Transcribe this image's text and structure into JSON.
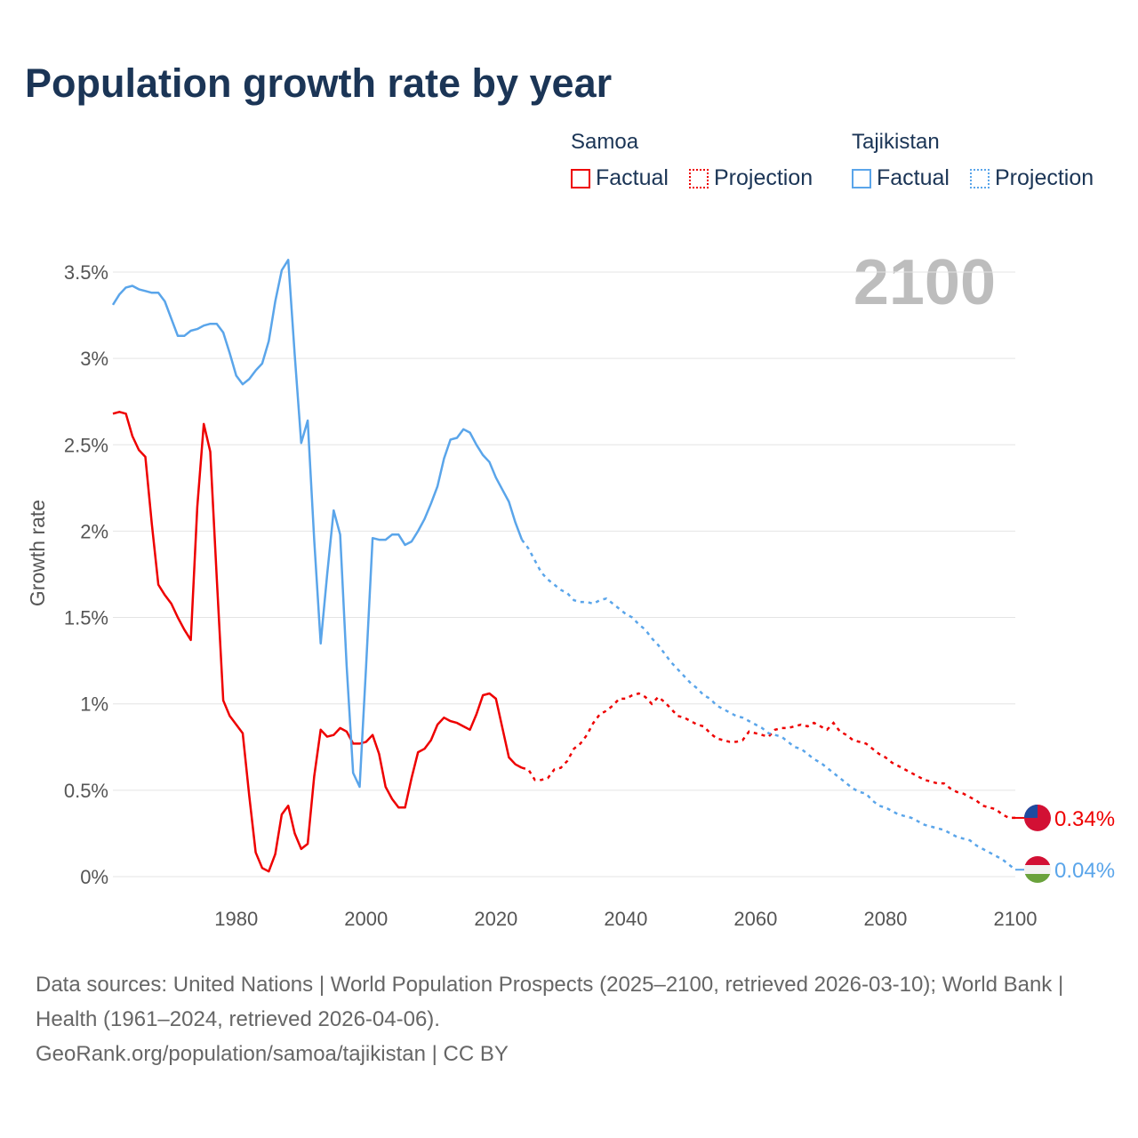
{
  "title": "Population growth rate by year",
  "legend": {
    "groups": [
      {
        "name": "Samoa",
        "factual": "Factual",
        "projection": "Projection",
        "color": "#ee0000"
      },
      {
        "name": "Tajikistan",
        "factual": "Factual",
        "projection": "Projection",
        "color": "#5aa5ea"
      }
    ]
  },
  "year_label": "2100",
  "footer": {
    "sources": "Data sources: United Nations | World Population Prospects (2025–2100, retrieved 2026-03-10); World Bank | Health (1961–2024, retrieved 2026-04-06).",
    "credit": "GeoRank.org/population/samoa/tajikistan | CC BY"
  },
  "chart_data": {
    "type": "line",
    "title": "Population growth rate by year",
    "xlabel": "",
    "ylabel": "Growth rate",
    "xlim": [
      1961,
      2100
    ],
    "ylim": [
      0,
      3.6
    ],
    "x_ticks": [
      "1980",
      "2000",
      "2020",
      "2040",
      "2060",
      "2080",
      "2100"
    ],
    "y_ticks": [
      "0%",
      "0.5%",
      "1%",
      "1.5%",
      "2%",
      "2.5%",
      "3%",
      "3.5%"
    ],
    "y_tick_values": [
      0,
      0.5,
      1,
      1.5,
      2,
      2.5,
      3,
      3.5
    ],
    "x_tick_values": [
      1980,
      2000,
      2020,
      2040,
      2060,
      2080,
      2100
    ],
    "grid": true,
    "series": [
      {
        "name": "Samoa",
        "color": "#ee0000",
        "end_label": "0.34%",
        "factual_start": 1961,
        "factual": [
          2.68,
          2.69,
          2.68,
          2.55,
          2.47,
          2.43,
          2.04,
          1.69,
          1.63,
          1.58,
          1.5,
          1.43,
          1.37,
          2.14,
          2.62,
          2.46,
          1.73,
          1.02,
          0.93,
          0.88,
          0.83,
          0.47,
          0.14,
          0.05,
          0.03,
          0.13,
          0.36,
          0.41,
          0.25,
          0.16,
          0.19,
          0.58,
          0.85,
          0.81,
          0.82,
          0.86,
          0.84,
          0.77,
          0.77,
          0.78,
          0.82,
          0.71,
          0.52,
          0.45,
          0.4,
          0.4,
          0.57,
          0.72,
          0.74,
          0.79,
          0.88,
          0.92,
          0.9,
          0.89,
          0.87,
          0.85,
          0.94,
          1.05,
          1.06,
          1.03,
          0.86,
          0.69,
          0.65,
          0.63
        ],
        "projection_start": 2024,
        "projection": [
          0.63,
          0.62,
          0.56,
          0.56,
          0.57,
          0.62,
          0.63,
          0.67,
          0.74,
          0.77,
          0.82,
          0.89,
          0.94,
          0.96,
          0.99,
          1.03,
          1.03,
          1.05,
          1.06,
          1.04,
          1.0,
          1.04,
          1.01,
          0.97,
          0.93,
          0.92,
          0.9,
          0.88,
          0.87,
          0.83,
          0.8,
          0.79,
          0.78,
          0.78,
          0.79,
          0.84,
          0.83,
          0.82,
          0.81,
          0.85,
          0.86,
          0.86,
          0.87,
          0.88,
          0.87,
          0.89,
          0.87,
          0.85,
          0.89,
          0.84,
          0.82,
          0.79,
          0.78,
          0.77,
          0.74,
          0.71,
          0.69,
          0.66,
          0.64,
          0.62,
          0.6,
          0.58,
          0.56,
          0.55,
          0.54,
          0.54,
          0.51,
          0.49,
          0.48,
          0.46,
          0.44,
          0.41,
          0.4,
          0.39,
          0.36,
          0.34,
          0.34
        ]
      },
      {
        "name": "Tajikistan",
        "color": "#5aa5ea",
        "end_label": "0.04%",
        "factual_start": 1961,
        "factual": [
          3.31,
          3.37,
          3.41,
          3.42,
          3.4,
          3.39,
          3.38,
          3.38,
          3.33,
          3.23,
          3.13,
          3.13,
          3.16,
          3.17,
          3.19,
          3.2,
          3.2,
          3.15,
          3.03,
          2.9,
          2.85,
          2.88,
          2.93,
          2.97,
          3.1,
          3.33,
          3.51,
          3.57,
          3.02,
          2.51,
          2.64,
          1.95,
          1.35,
          1.75,
          2.12,
          1.98,
          1.22,
          0.6,
          0.52,
          1.22,
          1.96,
          1.95,
          1.95,
          1.98,
          1.98,
          1.92,
          1.94,
          2.0,
          2.07,
          2.16,
          2.26,
          2.42,
          2.53,
          2.54,
          2.59,
          2.57,
          2.5,
          2.44,
          2.4,
          2.31,
          2.24,
          2.17,
          2.05,
          1.95
        ],
        "projection_start": 2024,
        "projection": [
          1.95,
          1.9,
          1.83,
          1.76,
          1.72,
          1.69,
          1.66,
          1.64,
          1.6,
          1.59,
          1.59,
          1.58,
          1.6,
          1.61,
          1.58,
          1.55,
          1.52,
          1.5,
          1.46,
          1.43,
          1.38,
          1.34,
          1.29,
          1.24,
          1.2,
          1.16,
          1.12,
          1.09,
          1.05,
          1.03,
          0.99,
          0.97,
          0.95,
          0.93,
          0.92,
          0.9,
          0.88,
          0.86,
          0.83,
          0.82,
          0.81,
          0.78,
          0.75,
          0.74,
          0.71,
          0.68,
          0.66,
          0.63,
          0.6,
          0.57,
          0.54,
          0.51,
          0.49,
          0.48,
          0.44,
          0.41,
          0.4,
          0.38,
          0.36,
          0.35,
          0.34,
          0.32,
          0.3,
          0.29,
          0.28,
          0.27,
          0.25,
          0.23,
          0.22,
          0.21,
          0.18,
          0.16,
          0.14,
          0.12,
          0.1,
          0.07,
          0.04
        ]
      }
    ]
  }
}
